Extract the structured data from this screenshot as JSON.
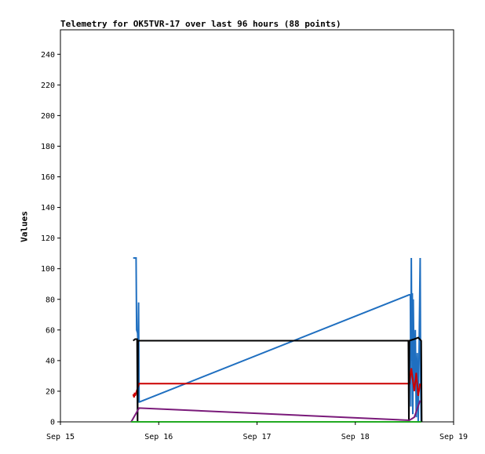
{
  "chart_data": {
    "type": "line",
    "title": "Telemetry for OK5TVR-17 over last 96 hours (88 points)",
    "xlabel": "",
    "ylabel": "Values",
    "x_ticks": [
      "Sep 15",
      "Sep 16",
      "Sep 17",
      "Sep 18",
      "Sep 19"
    ],
    "y_ticks": [
      0,
      20,
      40,
      60,
      80,
      100,
      120,
      140,
      160,
      180,
      200,
      220,
      240
    ],
    "xlim": [
      0,
      4
    ],
    "ylim": [
      0,
      256
    ],
    "grid": false,
    "legend": "none",
    "series": [
      {
        "color": "#1f6fc0",
        "points": [
          [
            0.74,
            107
          ],
          [
            0.77,
            107
          ],
          [
            0.775,
            60
          ],
          [
            0.785,
            58
          ],
          [
            0.79,
            50
          ],
          [
            0.795,
            78
          ],
          [
            0.8,
            13
          ],
          [
            0.805,
            13
          ],
          [
            3.55,
            83
          ],
          [
            3.56,
            83
          ],
          [
            3.565,
            10
          ],
          [
            3.57,
            107
          ],
          [
            3.575,
            40
          ],
          [
            3.58,
            84
          ],
          [
            3.585,
            5
          ],
          [
            3.59,
            80
          ],
          [
            3.6,
            20
          ],
          [
            3.61,
            60
          ],
          [
            3.62,
            3
          ],
          [
            3.63,
            45
          ],
          [
            3.64,
            0
          ],
          [
            3.65,
            55
          ],
          [
            3.66,
            107
          ],
          [
            3.665,
            25
          ],
          [
            3.67,
            0
          ]
        ]
      },
      {
        "color": "#cc0000",
        "points": [
          [
            0.74,
            18
          ],
          [
            0.75,
            16
          ],
          [
            0.755,
            19
          ],
          [
            0.76,
            17
          ],
          [
            0.8,
            25
          ],
          [
            3.55,
            25
          ],
          [
            3.57,
            35
          ],
          [
            3.6,
            20
          ],
          [
            3.62,
            32
          ],
          [
            3.64,
            17
          ],
          [
            3.66,
            25
          ]
        ]
      },
      {
        "color": "#000000",
        "points": [
          [
            0.74,
            53
          ],
          [
            0.76,
            54
          ],
          [
            0.78,
            54
          ],
          [
            0.785,
            0
          ],
          [
            0.79,
            53
          ],
          [
            3.54,
            53
          ],
          [
            3.545,
            0
          ],
          [
            3.55,
            53
          ],
          [
            3.6,
            54
          ],
          [
            3.64,
            55
          ],
          [
            3.67,
            53
          ],
          [
            3.675,
            0
          ]
        ]
      },
      {
        "color": "#7a1a7a",
        "points": [
          [
            0.72,
            0
          ],
          [
            0.8,
            9
          ],
          [
            3.55,
            1
          ],
          [
            3.6,
            3
          ],
          [
            3.66,
            14
          ]
        ]
      },
      {
        "color": "#22aa22",
        "points": [
          [
            0.72,
            0
          ],
          [
            3.67,
            0
          ]
        ]
      }
    ]
  }
}
